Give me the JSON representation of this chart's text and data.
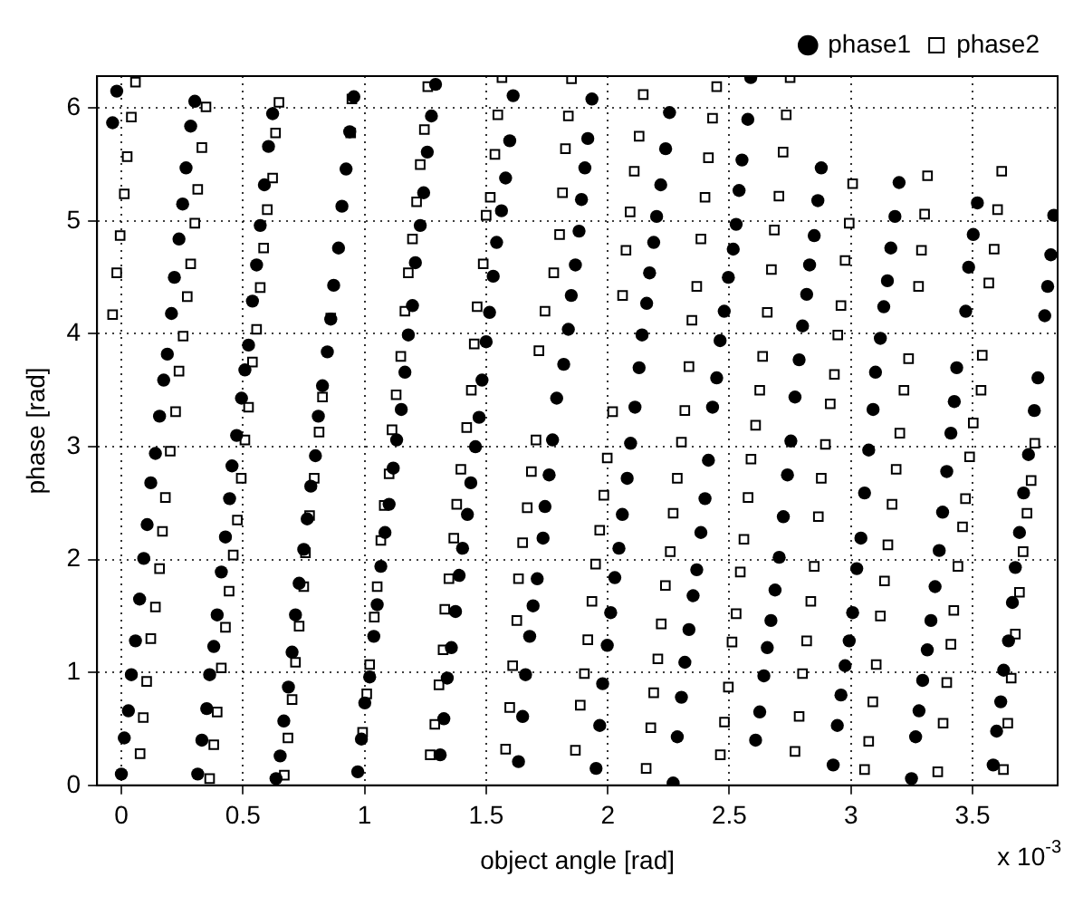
{
  "chart_data": {
    "type": "scatter",
    "xlabel": "object angle [rad]",
    "ylabel": "phase [rad]",
    "annotations": [
      "x 10$^{-3}$"
    ],
    "xlim": [
      -0.1,
      3.85
    ],
    "ylim": [
      0,
      6.2832
    ],
    "xticks": [
      0,
      0.5,
      1,
      1.5,
      2,
      2.5,
      3,
      3.5
    ],
    "yticks": [
      0,
      1,
      2,
      3,
      4,
      5,
      6
    ],
    "grid": true,
    "legend": "top right",
    "series": [
      {
        "name": "phase1",
        "color": "#000000",
        "marker": "circle",
        "x": [
          -0.036,
          -0.019,
          0.0,
          0.012,
          0.029,
          0.041,
          0.058,
          0.075,
          0.092,
          0.106,
          0.121,
          0.14,
          0.157,
          0.174,
          0.189,
          0.206,
          0.218,
          0.237,
          0.252,
          0.266,
          0.285,
          0.302,
          0.314,
          0.331,
          0.351,
          0.363,
          0.38,
          0.394,
          0.411,
          0.428,
          0.445,
          0.455,
          0.474,
          0.494,
          0.508,
          0.523,
          0.539,
          0.556,
          0.571,
          0.588,
          0.605,
          0.622,
          0.636,
          0.653,
          0.668,
          0.687,
          0.702,
          0.716,
          0.731,
          0.75,
          0.764,
          0.779,
          0.798,
          0.81,
          0.827,
          0.847,
          0.861,
          0.873,
          0.893,
          0.907,
          0.924,
          0.939,
          0.956,
          0.972,
          0.987,
          1.001,
          1.021,
          1.038,
          1.052,
          1.067,
          1.084,
          1.101,
          1.118,
          1.132,
          1.151,
          1.166,
          1.18,
          1.197,
          1.209,
          1.229,
          1.243,
          1.258,
          1.275,
          1.292,
          1.311,
          1.326,
          1.34,
          1.357,
          1.374,
          1.389,
          1.403,
          1.423,
          1.437,
          1.456,
          1.471,
          1.483,
          1.5,
          1.514,
          1.529,
          1.543,
          1.563,
          1.58,
          1.597,
          1.611,
          1.633,
          1.65,
          1.662,
          1.679,
          1.693,
          1.71,
          1.734,
          1.742,
          1.759,
          1.773,
          1.79,
          1.819,
          1.838,
          1.85,
          1.867,
          1.882,
          1.892,
          1.906,
          1.918,
          1.935,
          1.952,
          1.967,
          1.979,
          1.998,
          2.012,
          2.029,
          2.046,
          2.06,
          2.08,
          2.094,
          2.112,
          2.129,
          2.141,
          2.16,
          2.172,
          2.189,
          2.201,
          2.218,
          2.238,
          2.254,
          2.269,
          2.286,
          2.303,
          2.317,
          2.334,
          2.351,
          2.366,
          2.383,
          2.4,
          2.414,
          2.431,
          2.448,
          2.462,
          2.479,
          2.496,
          2.516,
          2.528,
          2.54,
          2.552,
          2.576,
          2.588,
          2.608,
          2.625,
          2.642,
          2.656,
          2.671,
          2.688,
          2.705,
          2.722,
          2.739,
          2.753,
          2.77,
          2.787,
          2.801,
          2.818,
          2.83,
          2.849,
          2.864,
          2.878,
          2.927,
          2.944,
          2.959,
          2.976,
          2.993,
          3.007,
          3.024,
          3.041,
          3.056,
          3.073,
          3.091,
          3.101,
          3.121,
          3.135,
          3.15,
          3.164,
          3.181,
          3.198,
          3.249,
          3.266,
          3.28,
          3.295,
          3.314,
          3.329,
          3.346,
          3.363,
          3.377,
          3.394,
          3.411,
          3.425,
          3.435,
          3.472,
          3.484,
          3.503,
          3.52,
          3.585,
          3.599,
          3.616,
          3.628,
          3.648,
          3.664,
          3.676,
          3.693,
          3.71,
          3.73,
          3.754,
          3.769,
          3.797,
          3.809,
          3.822,
          3.834
        ],
        "values": [
          5.87,
          6.15,
          0.1,
          0.42,
          0.66,
          0.98,
          1.28,
          1.65,
          2.01,
          2.31,
          2.68,
          2.94,
          3.27,
          3.59,
          3.82,
          4.18,
          4.5,
          4.84,
          5.15,
          5.47,
          5.84,
          6.06,
          0.1,
          0.4,
          0.68,
          0.98,
          1.23,
          1.51,
          1.89,
          2.2,
          2.54,
          2.83,
          3.1,
          3.43,
          3.68,
          3.9,
          4.29,
          4.61,
          4.96,
          5.32,
          5.66,
          5.95,
          0.06,
          0.26,
          0.57,
          0.87,
          1.18,
          1.51,
          1.79,
          2.09,
          2.36,
          2.65,
          2.92,
          3.27,
          3.54,
          3.84,
          4.13,
          4.43,
          4.76,
          5.13,
          5.46,
          5.79,
          6.1,
          0.12,
          0.41,
          0.73,
          0.96,
          1.32,
          1.6,
          1.94,
          2.24,
          2.49,
          2.81,
          3.06,
          3.33,
          3.66,
          3.99,
          4.25,
          4.63,
          4.96,
          5.25,
          5.61,
          5.93,
          6.21,
          0.27,
          0.59,
          0.95,
          1.22,
          1.54,
          1.86,
          2.1,
          2.4,
          2.68,
          3.0,
          3.26,
          3.59,
          3.93,
          4.19,
          4.51,
          4.81,
          5.09,
          5.38,
          5.71,
          6.11,
          0.21,
          0.61,
          0.98,
          1.32,
          1.59,
          1.83,
          2.19,
          2.47,
          2.75,
          3.06,
          3.43,
          3.73,
          4.04,
          4.34,
          4.61,
          4.91,
          5.19,
          5.47,
          5.73,
          6.08,
          0.15,
          0.53,
          0.9,
          1.24,
          1.53,
          1.84,
          2.1,
          2.4,
          2.72,
          3.03,
          3.35,
          3.7,
          3.99,
          4.27,
          4.54,
          4.81,
          5.04,
          5.32,
          5.64,
          5.96,
          0.02,
          0.43,
          0.78,
          1.09,
          1.38,
          1.68,
          1.91,
          2.24,
          2.54,
          2.88,
          3.35,
          3.61,
          3.94,
          4.2,
          4.5,
          4.75,
          4.97,
          5.27,
          5.54,
          5.9,
          6.27,
          0.4,
          0.65,
          0.97,
          1.22,
          1.46,
          1.73,
          2.02,
          2.38,
          2.75,
          3.05,
          3.44,
          3.77,
          4.07,
          4.35,
          4.61,
          4.87,
          5.18,
          5.47,
          0.18,
          0.53,
          0.8,
          1.06,
          1.28,
          1.53,
          1.92,
          2.19,
          2.59,
          2.97,
          3.33,
          3.66,
          3.96,
          4.24,
          4.47,
          4.76,
          5.04,
          5.34,
          0.06,
          0.43,
          0.66,
          0.93,
          1.2,
          1.46,
          1.76,
          2.08,
          2.42,
          2.78,
          3.12,
          3.4,
          3.7,
          4.2,
          4.59,
          4.88,
          5.16,
          0.18,
          0.48,
          0.74,
          1.02,
          1.28,
          1.62,
          1.93,
          2.24,
          2.59,
          2.93,
          3.32,
          3.61,
          4.16,
          4.42,
          4.7,
          5.05
        ]
      },
      {
        "name": "phase2",
        "color": "#000000",
        "marker": "square",
        "x": [
          -0.036,
          -0.019,
          -0.005,
          0.012,
          0.024,
          0.041,
          0.058,
          0.077,
          0.09,
          0.104,
          0.121,
          0.14,
          0.157,
          0.169,
          0.181,
          0.201,
          0.223,
          0.237,
          0.254,
          0.271,
          0.285,
          0.302,
          0.314,
          0.331,
          0.348,
          0.363,
          0.38,
          0.394,
          0.411,
          0.428,
          0.443,
          0.46,
          0.477,
          0.493,
          0.508,
          0.523,
          0.539,
          0.556,
          0.571,
          0.585,
          0.6,
          0.622,
          0.634,
          0.648,
          0.67,
          0.685,
          0.702,
          0.716,
          0.731,
          0.75,
          0.757,
          0.774,
          0.793,
          0.813,
          0.827,
          0.861,
          0.943,
          0.948,
          0.992,
          1.009,
          1.021,
          1.04,
          1.052,
          1.067,
          1.081,
          1.101,
          1.113,
          1.13,
          1.149,
          1.166,
          1.18,
          1.197,
          1.214,
          1.229,
          1.246,
          1.26,
          1.27,
          1.289,
          1.306,
          1.323,
          1.33,
          1.347,
          1.367,
          1.379,
          1.396,
          1.42,
          1.439,
          1.451,
          1.463,
          1.488,
          1.5,
          1.517,
          1.536,
          1.548,
          1.565,
          1.58,
          1.597,
          1.609,
          1.626,
          1.633,
          1.65,
          1.669,
          1.686,
          1.705,
          1.717,
          1.742,
          1.778,
          1.802,
          1.814,
          1.826,
          1.838,
          1.851,
          1.867,
          1.887,
          1.904,
          1.918,
          1.935,
          1.95,
          1.967,
          1.984,
          1.998,
          2.02,
          2.061,
          2.075,
          2.092,
          2.109,
          2.129,
          2.146,
          2.158,
          2.177,
          2.189,
          2.206,
          2.22,
          2.237,
          2.257,
          2.269,
          2.286,
          2.303,
          2.317,
          2.334,
          2.346,
          2.366,
          2.383,
          2.4,
          2.414,
          2.431,
          2.448,
          2.463,
          2.48,
          2.496,
          2.511,
          2.528,
          2.545,
          2.56,
          2.577,
          2.589,
          2.608,
          2.625,
          2.637,
          2.656,
          2.673,
          2.685,
          2.704,
          2.721,
          2.734,
          2.75,
          2.77,
          2.787,
          2.801,
          2.818,
          2.835,
          2.849,
          2.866,
          2.878,
          2.895,
          2.915,
          2.932,
          2.946,
          2.959,
          2.976,
          2.993,
          3.007,
          3.056,
          3.073,
          3.09,
          3.104,
          3.121,
          3.138,
          3.152,
          3.169,
          3.186,
          3.201,
          3.218,
          3.237,
          3.278,
          3.29,
          3.303,
          3.315,
          3.357,
          3.379,
          3.394,
          3.411,
          3.423,
          3.44,
          3.459,
          3.471,
          3.488,
          3.503,
          3.535,
          3.54,
          3.567,
          3.589,
          3.603,
          3.62,
          3.627,
          3.645,
          3.659,
          3.676,
          3.693,
          3.708,
          3.724,
          3.741,
          3.756
        ],
        "values": [
          4.17,
          4.54,
          4.87,
          5.24,
          5.57,
          5.92,
          6.23,
          0.28,
          0.6,
          0.92,
          1.3,
          1.58,
          1.92,
          2.25,
          2.55,
          2.96,
          3.31,
          3.67,
          3.98,
          4.33,
          4.62,
          4.98,
          5.28,
          5.65,
          6.01,
          0.06,
          0.36,
          0.65,
          1.04,
          1.4,
          1.72,
          2.04,
          2.35,
          2.72,
          3.06,
          3.35,
          3.75,
          4.04,
          4.41,
          4.76,
          5.1,
          5.38,
          5.78,
          6.05,
          0.09,
          0.42,
          0.76,
          1.09,
          1.41,
          1.76,
          2.06,
          2.39,
          2.72,
          3.13,
          3.44,
          4.14,
          5.78,
          6.08,
          0.47,
          0.81,
          1.07,
          1.49,
          1.76,
          2.17,
          2.48,
          2.76,
          3.15,
          3.46,
          3.8,
          4.2,
          4.54,
          4.84,
          5.17,
          5.5,
          5.81,
          6.19,
          0.27,
          0.54,
          0.89,
          1.2,
          1.56,
          1.83,
          2.19,
          2.49,
          2.8,
          3.17,
          3.5,
          3.91,
          4.24,
          4.62,
          5.05,
          5.21,
          5.59,
          5.94,
          6.27,
          0.32,
          0.69,
          1.06,
          1.46,
          1.83,
          2.15,
          2.46,
          2.78,
          3.06,
          3.85,
          4.2,
          4.54,
          4.88,
          5.25,
          5.64,
          5.93,
          6.26,
          0.31,
          0.71,
          0.99,
          1.29,
          1.63,
          1.96,
          2.26,
          2.57,
          2.9,
          3.31,
          4.34,
          4.74,
          5.08,
          5.44,
          5.75,
          6.12,
          0.15,
          0.51,
          0.82,
          1.12,
          1.43,
          1.77,
          2.07,
          2.41,
          2.72,
          3.04,
          3.32,
          3.71,
          4.12,
          4.42,
          4.84,
          5.21,
          5.56,
          5.91,
          6.19,
          0.27,
          0.56,
          0.87,
          1.27,
          1.52,
          1.89,
          2.18,
          2.55,
          2.89,
          3.19,
          3.5,
          3.8,
          4.19,
          4.57,
          4.92,
          5.22,
          5.61,
          5.94,
          6.27,
          0.3,
          0.61,
          0.99,
          1.28,
          1.63,
          1.94,
          2.38,
          2.72,
          3.02,
          3.38,
          3.64,
          3.99,
          4.25,
          4.65,
          4.98,
          5.33,
          0.14,
          0.39,
          0.74,
          1.07,
          1.5,
          1.81,
          2.13,
          2.49,
          2.8,
          3.12,
          3.5,
          3.78,
          4.42,
          4.74,
          5.06,
          5.4,
          0.12,
          0.55,
          0.91,
          1.25,
          1.55,
          1.94,
          2.29,
          2.54,
          2.91,
          3.21,
          3.5,
          3.81,
          4.45,
          4.75,
          5.1,
          5.44,
          0.14,
          0.55,
          0.95,
          1.34,
          1.71,
          2.07,
          2.41,
          2.7,
          3.03
        ]
      }
    ]
  }
}
